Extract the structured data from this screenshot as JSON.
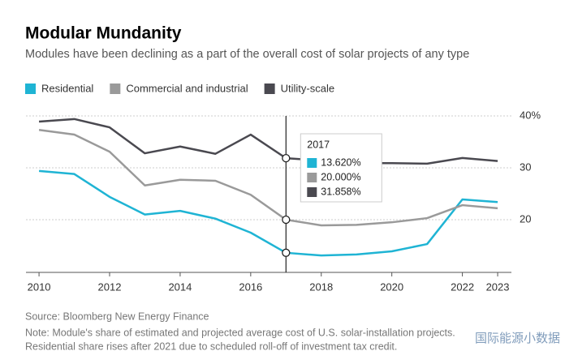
{
  "chart_data": {
    "type": "line",
    "title": "Modular Mundanity",
    "subtitle": "Modules have been declining as a part of the overall cost of solar projects of any type",
    "x": [
      2010,
      2011,
      2012,
      2013,
      2014,
      2015,
      2016,
      2017,
      2018,
      2019,
      2020,
      2021,
      2022,
      2023
    ],
    "xlim": [
      2009.63,
      2023.39
    ],
    "xticks": [
      2010,
      2012,
      2014,
      2016,
      2018,
      2020,
      2022,
      2023
    ],
    "ylim": [
      9.84,
      40
    ],
    "yticks": [
      20,
      30,
      {
        "value": 40,
        "label": "40%"
      }
    ],
    "grid": true,
    "series": [
      {
        "name": "Residential",
        "color": "#1fb4d4",
        "values": [
          29.4,
          28.8,
          24.4,
          21.0,
          21.7,
          20.2,
          17.5,
          13.62,
          13.1,
          13.3,
          13.9,
          15.3,
          23.9,
          23.4
        ],
        "value_labels": [
          null,
          null,
          null,
          null,
          null,
          null,
          null,
          "13.620%",
          null,
          null,
          null,
          null,
          null,
          null
        ]
      },
      {
        "name": "Commercial and industrial",
        "color": "#9a9a9a",
        "values": [
          37.3,
          36.4,
          33.1,
          26.6,
          27.7,
          27.5,
          24.8,
          20.0,
          18.9,
          19.0,
          19.5,
          20.3,
          22.8,
          22.2
        ],
        "value_labels": [
          null,
          null,
          null,
          null,
          null,
          null,
          null,
          "20.000%",
          null,
          null,
          null,
          null,
          null,
          null
        ]
      },
      {
        "name": "Utility-scale",
        "color": "#4a4950",
        "values": [
          38.9,
          39.4,
          37.8,
          32.8,
          34.1,
          32.7,
          36.4,
          31.858,
          31.4,
          30.9,
          30.9,
          30.8,
          31.9,
          31.3
        ],
        "value_labels": [
          null,
          null,
          null,
          null,
          null,
          null,
          null,
          "31.858%",
          null,
          null,
          null,
          null,
          null,
          null
        ]
      }
    ],
    "tooltip_x": 2017,
    "source": "Source: Bloomberg New Energy Finance",
    "note": [
      "Note: Module's share of estimated and projected average cost of U.S. solar-installation projects.",
      "Residential share rises after 2021 due to scheduled roll-off of investment tax credit."
    ],
    "watermark": "国际能源小数据"
  }
}
